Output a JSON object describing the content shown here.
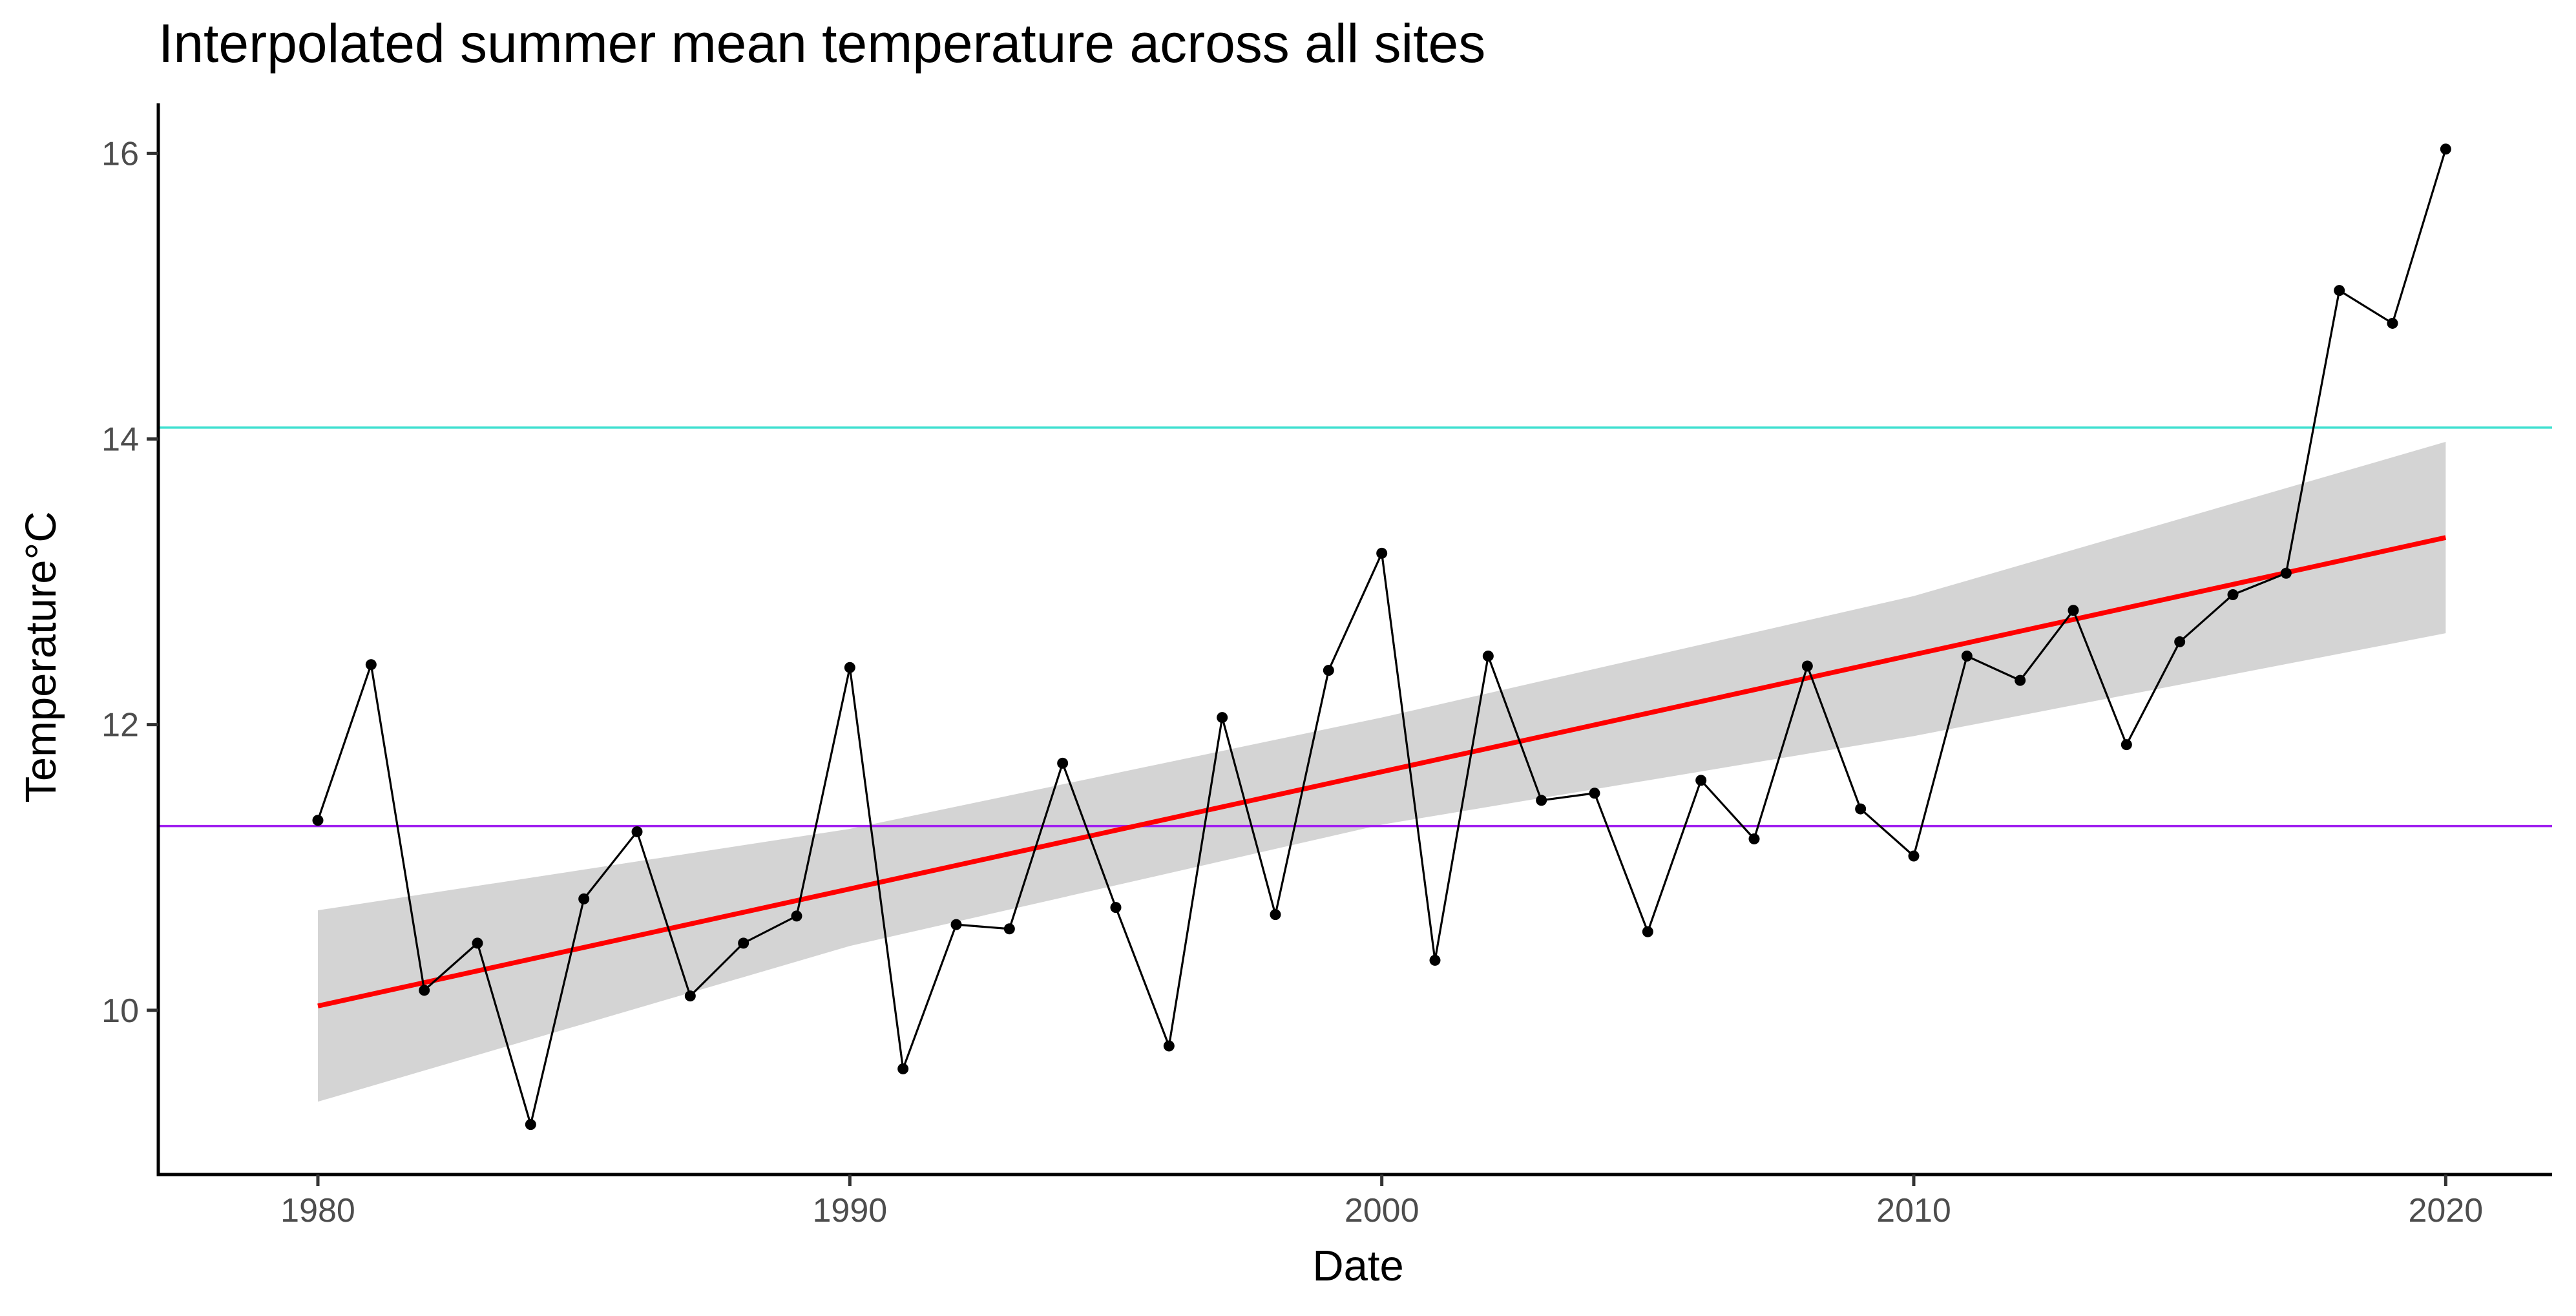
{
  "chart_data": {
    "type": "line",
    "title": "Interpolated summer mean temperature across all sites",
    "xlabel": "Date",
    "ylabel": "Temperature°C",
    "xlim": [
      1977,
      2022
    ],
    "ylim": [
      8.85,
      16.35
    ],
    "x_ticks": [
      1980,
      1990,
      2000,
      2010,
      2020
    ],
    "y_ticks": [
      10,
      12,
      14,
      16
    ],
    "grid": false,
    "legend": "none",
    "colors": {
      "observed": "#000000",
      "trend": "#ff0000",
      "confidence_band": "#d4d4d4",
      "upper_reference": "#40e0d0",
      "lower_reference": "#a020f0"
    },
    "series": [
      {
        "x": [
          1980,
          1981,
          1982,
          1983,
          1984,
          1985,
          1986,
          1987,
          1988,
          1989,
          1990,
          1991,
          1992,
          1993,
          1994,
          1995,
          1996,
          1997,
          1998,
          1999,
          2000,
          2001,
          2002,
          2003,
          2004,
          2005,
          2006,
          2007,
          2008,
          2009,
          2010,
          2011,
          2012,
          2013,
          2014,
          2015,
          2016,
          2017,
          2018,
          2019,
          2020
        ],
        "values": [
          11.33,
          12.42,
          10.14,
          10.47,
          9.2,
          10.78,
          11.25,
          10.1,
          10.47,
          10.66,
          12.4,
          9.59,
          10.6,
          10.57,
          11.73,
          10.72,
          9.75,
          12.05,
          10.67,
          12.38,
          13.2,
          10.35,
          12.48,
          11.47,
          11.52,
          10.55,
          11.61,
          11.2,
          12.41,
          11.41,
          11.08,
          12.48,
          12.31,
          12.8,
          11.86,
          12.58,
          12.91,
          13.06,
          15.04,
          14.81,
          16.03
        ]
      }
    ],
    "trend": {
      "x": [
        1980,
        2020
      ],
      "values": [
        10.03,
        13.31
      ]
    },
    "confidence_band": {
      "x": [
        1980,
        1990,
        2000,
        2010,
        2020
      ],
      "lower": [
        9.36,
        10.45,
        11.3,
        11.92,
        12.64
      ],
      "upper": [
        10.7,
        11.27,
        12.05,
        12.9,
        13.98
      ]
    },
    "reference_lines": [
      {
        "y": 14.08
      },
      {
        "y": 11.29
      }
    ]
  }
}
